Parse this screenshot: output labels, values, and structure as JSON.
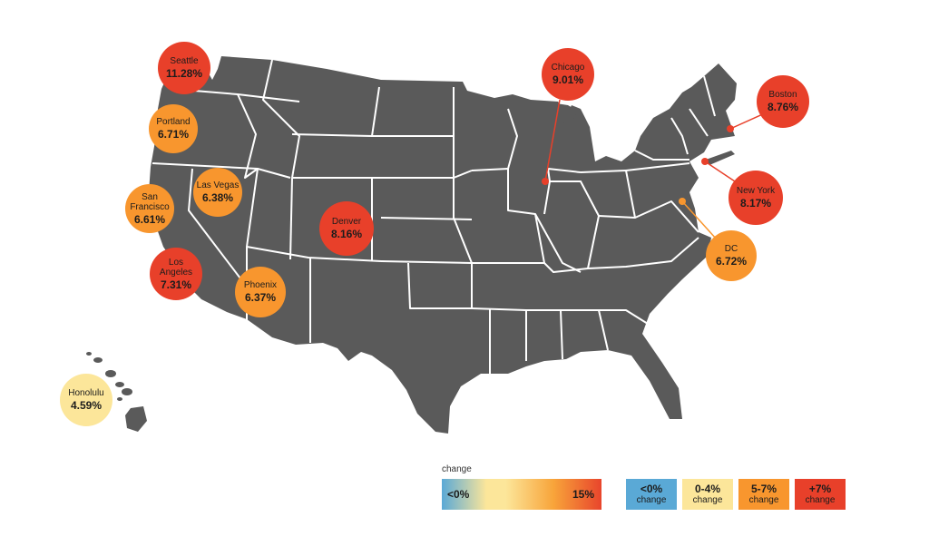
{
  "colors": {
    "land": "#5a5a5a",
    "border": "#ffffff",
    "negative": "#5aa9d6",
    "low": "#fce69a",
    "mid": "#f8962e",
    "high": "#e8402a"
  },
  "cities": [
    {
      "name": "Seattle",
      "value": "11.28%",
      "tier": "high"
    },
    {
      "name": "Portland",
      "value": "6.71%",
      "tier": "mid"
    },
    {
      "name": "San\nFrancisco",
      "value": "6.61%",
      "tier": "mid"
    },
    {
      "name": "Las Vegas",
      "value": "6.38%",
      "tier": "mid"
    },
    {
      "name": "Los\nAngeles",
      "value": "7.31%",
      "tier": "high"
    },
    {
      "name": "Phoenix",
      "value": "6.37%",
      "tier": "mid"
    },
    {
      "name": "Denver",
      "value": "8.16%",
      "tier": "high"
    },
    {
      "name": "Chicago",
      "value": "9.01%",
      "tier": "high"
    },
    {
      "name": "Boston",
      "value": "8.76%",
      "tier": "high"
    },
    {
      "name": "New York",
      "value": "8.17%",
      "tier": "high"
    },
    {
      "name": "DC",
      "value": "6.72%",
      "tier": "mid"
    },
    {
      "name": "Honolulu",
      "value": "4.59%",
      "tier": "low"
    }
  ],
  "scale": {
    "title": "change",
    "min_label": "<0%",
    "max_label": "15%"
  },
  "legend": [
    {
      "range": "<0%",
      "label": "change",
      "tier": "negative"
    },
    {
      "range": "0-4%",
      "label": "change",
      "tier": "low"
    },
    {
      "range": "5-7%",
      "label": "change",
      "tier": "mid"
    },
    {
      "range": "+7%",
      "label": "change",
      "tier": "high"
    }
  ]
}
